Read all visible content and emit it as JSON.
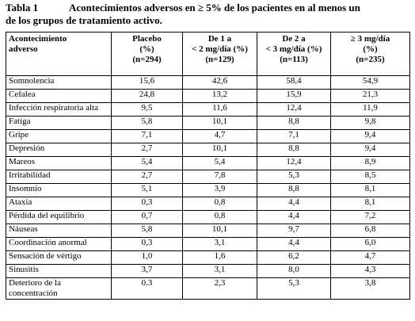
{
  "title": {
    "label": "Tabla 1",
    "lines": [
      "Acontecimientos adversos en ≥ 5% de los pacientes en al menos un",
      "de los grupos de tratamiento activo."
    ]
  },
  "table": {
    "header": [
      [
        "Acontecimiento",
        "adverso"
      ],
      [
        "Placebo",
        "(%)",
        "(n=294)"
      ],
      [
        "De 1 a",
        "< 2 mg/día (%)",
        "(n=129)"
      ],
      [
        "De 2 a",
        "< 3 mg/día (%)",
        "(n=113)"
      ],
      [
        "≥ 3 mg/día",
        "(%)",
        "(n=235)"
      ]
    ],
    "rows": [
      [
        "Somnolencia",
        "15,6",
        "42,6",
        "58,4",
        "54,9"
      ],
      [
        "Cefalea",
        "24,8",
        "13,2",
        "15,9",
        "21,3"
      ],
      [
        "Infección respiratoria alta",
        "9,5",
        "11,6",
        "12,4",
        "11,9"
      ],
      [
        "Fatiga",
        "5,8",
        "10,1",
        "8,8",
        "9,8"
      ],
      [
        "Gripe",
        "7,1",
        "4,7",
        "7,1",
        "9,4"
      ],
      [
        "Depresión",
        "2,7",
        "10,1",
        "8,8",
        "9,4"
      ],
      [
        "Mareos",
        "5,4",
        "5,4",
        "12,4",
        "8,9"
      ],
      [
        "Irritabilidad",
        "2,7",
        "7,8",
        "5,3",
        "8,5"
      ],
      [
        "Insomnio",
        "5,1",
        "3,9",
        "8,8",
        "8,1"
      ],
      [
        "Ataxia",
        "0,3",
        "0,8",
        "4,4",
        "8,1"
      ],
      [
        "Pérdida del equilibrio",
        "0,7",
        "0,8",
        "4,4",
        "7,2"
      ],
      [
        "Náuseas",
        "5,8",
        "10,1",
        "9,7",
        "6,8"
      ],
      [
        "Coordinación anormal",
        "0,3",
        "3,1",
        "4,4",
        "6,0"
      ],
      [
        "Sensación de vértigo",
        "1,0",
        "1,6",
        "6,2",
        "4,7"
      ],
      [
        "Sinusitis",
        "3,7",
        "3,1",
        "8,0",
        "4,3"
      ],
      [
        "Deterioro de la concentración",
        "0.3",
        "2,3",
        "5,3",
        "3,8"
      ]
    ]
  }
}
